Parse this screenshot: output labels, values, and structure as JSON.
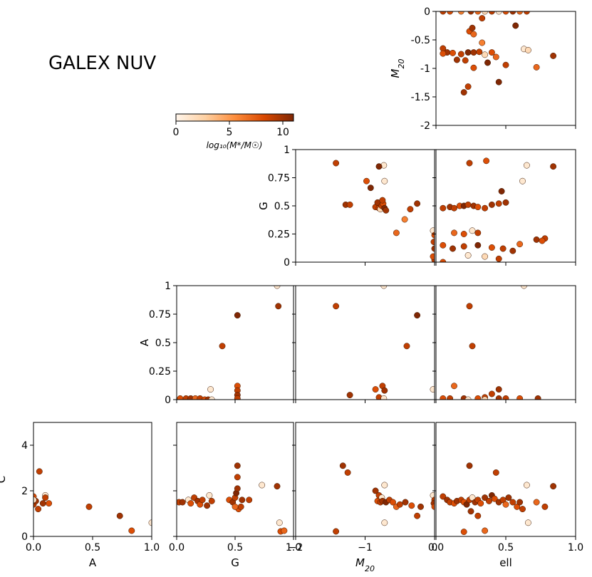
{
  "figure_title": "GALEX NUV",
  "colorbar": {
    "label": "log₁₀(M*/M☉)",
    "ticks": [
      "0",
      "5",
      "10"
    ],
    "range": [
      0,
      11
    ],
    "colors": [
      "#fff5eb",
      "#fdd0a2",
      "#fd8d3c",
      "#d94801",
      "#7f2704"
    ]
  },
  "chart_data": [
    {
      "type": "scatter",
      "id": "ell_vs_M20",
      "xlabel": "",
      "ylabel": "M20",
      "xlim": [
        0,
        1
      ],
      "ylim": [
        -2,
        0
      ],
      "x_ticks": [],
      "y_ticks": [
        "0",
        "-0.5",
        "-1",
        "-1.5",
        "-2"
      ],
      "points": [
        [
          0.05,
          0,
          9
        ],
        [
          0.1,
          0,
          8
        ],
        [
          0.18,
          0,
          6
        ],
        [
          0.25,
          0,
          10
        ],
        [
          0.3,
          0,
          7
        ],
        [
          0.35,
          0,
          2
        ],
        [
          0.4,
          0,
          9
        ],
        [
          0.45,
          0,
          1
        ],
        [
          0.5,
          0,
          8
        ],
        [
          0.55,
          0,
          10
        ],
        [
          0.6,
          0,
          7
        ],
        [
          0.65,
          0,
          9
        ],
        [
          0.24,
          -0.35,
          8
        ],
        [
          0.27,
          -0.4,
          7
        ],
        [
          0.33,
          -0.55,
          6
        ],
        [
          0.26,
          -0.29,
          10
        ],
        [
          0.33,
          -0.12,
          9
        ],
        [
          0.57,
          -0.25,
          11
        ],
        [
          0.05,
          -0.65,
          9
        ],
        [
          0.08,
          -0.72,
          10
        ],
        [
          0.12,
          -0.73,
          8
        ],
        [
          0.18,
          -0.75,
          9
        ],
        [
          0.23,
          -0.72,
          11
        ],
        [
          0.27,
          -0.72,
          10
        ],
        [
          0.31,
          -0.71,
          9
        ],
        [
          0.35,
          -0.76,
          2
        ],
        [
          0.4,
          -0.72,
          8
        ],
        [
          0.43,
          -0.8,
          7
        ],
        [
          0.15,
          -0.85,
          10
        ],
        [
          0.21,
          -0.86,
          9
        ],
        [
          0.27,
          -0.99,
          8
        ],
        [
          0.37,
          -0.9,
          11
        ],
        [
          0.5,
          -0.94,
          9
        ],
        [
          0.63,
          -0.66,
          1
        ],
        [
          0.66,
          -0.68,
          2
        ],
        [
          0.72,
          -0.98,
          7
        ],
        [
          0.84,
          -0.78,
          10
        ],
        [
          0.23,
          -1.32,
          9
        ],
        [
          0.2,
          -1.42,
          10
        ],
        [
          0.45,
          -1.24,
          11
        ],
        [
          0.05,
          -0.74,
          8
        ]
      ]
    },
    {
      "type": "scatter",
      "id": "M20_vs_G",
      "xlabel": "",
      "ylabel": "G",
      "xlim": [
        -2,
        0
      ],
      "ylim": [
        0,
        1
      ],
      "x_ticks": [],
      "y_ticks": [
        "1",
        "0.75",
        "0.5",
        "0.25",
        "0"
      ],
      "points": [
        [
          -1.42,
          0.88,
          9
        ],
        [
          -1.28,
          0.51,
          10
        ],
        [
          -1.22,
          0.51,
          9
        ],
        [
          -0.98,
          0.72,
          8
        ],
        [
          -0.92,
          0.66,
          11
        ],
        [
          -0.85,
          0.49,
          9
        ],
        [
          -0.82,
          0.53,
          10
        ],
        [
          -0.8,
          0.48,
          9
        ],
        [
          -0.78,
          0.47,
          2
        ],
        [
          -0.76,
          0.5,
          9
        ],
        [
          -0.74,
          0.52,
          8
        ],
        [
          -0.72,
          0.48,
          11
        ],
        [
          -0.7,
          0.46,
          10
        ],
        [
          -0.75,
          0.55,
          9
        ],
        [
          -0.73,
          0.86,
          1
        ],
        [
          -0.72,
          0.72,
          1
        ],
        [
          -0.8,
          0.85,
          11
        ],
        [
          -0.55,
          0.26,
          7
        ],
        [
          -0.43,
          0.38,
          6
        ],
        [
          -0.25,
          0.52,
          10
        ],
        [
          -0.35,
          0.47,
          9
        ],
        [
          -0.02,
          0.28,
          1
        ],
        [
          0,
          0.24,
          8
        ],
        [
          -0.01,
          0.18,
          9
        ],
        [
          0,
          0.12,
          10
        ],
        [
          0,
          0.02,
          9
        ],
        [
          -0.02,
          0.05,
          8
        ]
      ]
    },
    {
      "type": "scatter",
      "id": "ell_vs_G",
      "xlabel": "",
      "ylabel": "",
      "xlim": [
        0,
        1
      ],
      "ylim": [
        0,
        1
      ],
      "x_ticks": [],
      "y_ticks": [],
      "points": [
        [
          0.05,
          0.48,
          9
        ],
        [
          0.1,
          0.49,
          10
        ],
        [
          0.13,
          0.48,
          9
        ],
        [
          0.17,
          0.5,
          8
        ],
        [
          0.2,
          0.5,
          11
        ],
        [
          0.23,
          0.51,
          9
        ],
        [
          0.27,
          0.5,
          10
        ],
        [
          0.3,
          0.49,
          8
        ],
        [
          0.35,
          0.48,
          9
        ],
        [
          0.4,
          0.51,
          10
        ],
        [
          0.45,
          0.52,
          9
        ],
        [
          0.5,
          0.53,
          10
        ],
        [
          0.47,
          0.63,
          11
        ],
        [
          0.24,
          0.88,
          9
        ],
        [
          0.36,
          0.9,
          8
        ],
        [
          0.62,
          0.72,
          1
        ],
        [
          0.65,
          0.86,
          1
        ],
        [
          0.84,
          0.85,
          10
        ],
        [
          0.78,
          0.21,
          9
        ],
        [
          0.13,
          0.26,
          7
        ],
        [
          0.26,
          0.28,
          1
        ],
        [
          0.2,
          0.25,
          8
        ],
        [
          0.3,
          0.26,
          9
        ],
        [
          0.72,
          0.2,
          10
        ],
        [
          0.76,
          0.19,
          8
        ],
        [
          0.05,
          0.15,
          8
        ],
        [
          0.12,
          0.12,
          10
        ],
        [
          0.2,
          0.14,
          9
        ],
        [
          0.3,
          0.15,
          11
        ],
        [
          0.4,
          0.13,
          8
        ],
        [
          0.48,
          0.12,
          9
        ],
        [
          0.55,
          0.1,
          10
        ],
        [
          0.6,
          0.16,
          7
        ],
        [
          0.23,
          0.06,
          1
        ],
        [
          0.35,
          0.05,
          2
        ],
        [
          0.45,
          0.03,
          9
        ],
        [
          0.05,
          0.0,
          8
        ]
      ]
    },
    {
      "type": "scatter",
      "id": "G_vs_A",
      "xlabel": "",
      "ylabel": "A",
      "xlim": [
        0,
        1
      ],
      "ylim": [
        0,
        1
      ],
      "x_ticks": [],
      "y_ticks": [
        "1",
        "0.75",
        "0.5",
        "0.25",
        "0"
      ],
      "points": [
        [
          0.39,
          0.47,
          9
        ],
        [
          0.52,
          0.74,
          11
        ],
        [
          0.87,
          0.82,
          10
        ],
        [
          0.86,
          1.0,
          1
        ],
        [
          0.52,
          0.12,
          8
        ],
        [
          0.52,
          0.08,
          9
        ],
        [
          0.52,
          0.04,
          10
        ],
        [
          0.52,
          0.01,
          9
        ],
        [
          0.29,
          0.09,
          1
        ],
        [
          0.03,
          0.01,
          8
        ],
        [
          0.08,
          0.01,
          9
        ],
        [
          0.12,
          0.01,
          10
        ],
        [
          0.16,
          0.01,
          7
        ],
        [
          0.2,
          0.01,
          9
        ],
        [
          0.24,
          0.0,
          8
        ],
        [
          0.27,
          0.0,
          10
        ],
        [
          0.3,
          0.0,
          1
        ]
      ]
    },
    {
      "type": "scatter",
      "id": "M20_vs_A",
      "xlabel": "",
      "ylabel": "",
      "xlim": [
        -2,
        0
      ],
      "ylim": [
        0,
        1
      ],
      "x_ticks": [],
      "y_ticks": [],
      "points": [
        [
          -1.42,
          0.82,
          9
        ],
        [
          -0.25,
          0.74,
          11
        ],
        [
          -0.4,
          0.47,
          9
        ],
        [
          -0.73,
          1.0,
          1
        ],
        [
          -1.22,
          0.04,
          10
        ],
        [
          -0.85,
          0.09,
          8
        ],
        [
          -0.75,
          0.12,
          9
        ],
        [
          -0.72,
          0.08,
          10
        ],
        [
          -0.8,
          0.02,
          9
        ],
        [
          -0.73,
          0.01,
          1
        ],
        [
          -0.02,
          0.09,
          1
        ]
      ]
    },
    {
      "type": "scatter",
      "id": "ell_vs_A",
      "xlabel": "",
      "ylabel": "",
      "xlim": [
        0,
        1
      ],
      "ylim": [
        0,
        1
      ],
      "x_ticks": [],
      "y_ticks": [],
      "points": [
        [
          0.24,
          0.82,
          9
        ],
        [
          0.26,
          0.47,
          9
        ],
        [
          0.63,
          1.0,
          1
        ],
        [
          0.13,
          0.12,
          7
        ],
        [
          0.45,
          0.09,
          10
        ],
        [
          0.4,
          0.05,
          9
        ],
        [
          0.05,
          0.01,
          8
        ],
        [
          0.1,
          0.01,
          9
        ],
        [
          0.2,
          0.01,
          10
        ],
        [
          0.3,
          0.01,
          8
        ],
        [
          0.35,
          0.02,
          9
        ],
        [
          0.45,
          0.01,
          10
        ],
        [
          0.5,
          0.01,
          9
        ],
        [
          0.6,
          0.01,
          8
        ],
        [
          0.73,
          0.01,
          10
        ],
        [
          0.23,
          0.0,
          1
        ],
        [
          0.35,
          0.0,
          2
        ]
      ]
    },
    {
      "type": "scatter",
      "id": "A_vs_C",
      "xlabel": "A",
      "ylabel": "C",
      "xlim": [
        0,
        1
      ],
      "ylim": [
        0,
        5
      ],
      "x_ticks": [
        "0.0",
        "0.5",
        "1.0"
      ],
      "y_ticks": [
        "4",
        "2",
        "0"
      ],
      "points": [
        [
          0.05,
          2.85,
          9
        ],
        [
          0.0,
          1.75,
          8
        ],
        [
          0.1,
          1.8,
          1
        ],
        [
          0.1,
          1.7,
          9
        ],
        [
          0.08,
          1.45,
          10
        ],
        [
          0.13,
          1.45,
          8
        ],
        [
          0.0,
          1.4,
          9
        ],
        [
          0.02,
          1.55,
          10
        ],
        [
          0.04,
          1.2,
          9
        ],
        [
          0.0,
          1.6,
          1
        ],
        [
          0.47,
          1.3,
          9
        ],
        [
          0.73,
          0.9,
          10
        ],
        [
          0.83,
          0.25,
          8
        ],
        [
          1.0,
          0.6,
          1
        ]
      ]
    },
    {
      "type": "scatter",
      "id": "G_vs_C",
      "xlabel": "G",
      "ylabel": "",
      "xlim": [
        0,
        1
      ],
      "ylim": [
        0,
        5
      ],
      "x_ticks": [
        "0.0",
        "0.5",
        "1.0"
      ],
      "y_ticks": [],
      "points": [
        [
          0.02,
          1.5,
          9
        ],
        [
          0.05,
          1.5,
          10
        ],
        [
          0.1,
          1.6,
          1
        ],
        [
          0.12,
          1.45,
          8
        ],
        [
          0.15,
          1.7,
          9
        ],
        [
          0.18,
          1.55,
          10
        ],
        [
          0.2,
          1.4,
          8
        ],
        [
          0.22,
          1.6,
          9
        ],
        [
          0.26,
          1.35,
          10
        ],
        [
          0.28,
          1.8,
          1
        ],
        [
          0.3,
          1.55,
          9
        ],
        [
          0.45,
          1.6,
          8
        ],
        [
          0.48,
          1.5,
          10
        ],
        [
          0.5,
          1.7,
          9
        ],
        [
          0.51,
          1.9,
          11
        ],
        [
          0.52,
          2.1,
          10
        ],
        [
          0.52,
          2.6,
          9
        ],
        [
          0.52,
          3.1,
          10
        ],
        [
          0.53,
          1.2,
          8
        ],
        [
          0.55,
          1.3,
          9
        ],
        [
          0.56,
          1.6,
          10
        ],
        [
          0.5,
          1.3,
          7
        ],
        [
          0.62,
          1.6,
          9
        ],
        [
          0.73,
          2.25,
          1
        ],
        [
          0.86,
          2.2,
          10
        ],
        [
          0.88,
          0.6,
          1
        ],
        [
          0.89,
          0.22,
          8
        ],
        [
          0.92,
          0.25,
          7
        ]
      ]
    },
    {
      "type": "scatter",
      "id": "M20_vs_C",
      "xlabel": "M20",
      "ylabel": "",
      "xlim": [
        -2,
        0
      ],
      "ylim": [
        0,
        5
      ],
      "x_ticks": [
        "−2",
        "−1",
        "0"
      ],
      "y_ticks": [],
      "points": [
        [
          -1.32,
          3.1,
          10
        ],
        [
          -1.25,
          2.8,
          9
        ],
        [
          -1.42,
          0.22,
          9
        ],
        [
          -0.85,
          2.0,
          10
        ],
        [
          -0.8,
          1.8,
          9
        ],
        [
          -0.76,
          1.7,
          1
        ],
        [
          -0.72,
          2.25,
          1
        ],
        [
          -0.82,
          1.55,
          8
        ],
        [
          -0.78,
          1.5,
          9
        ],
        [
          -0.75,
          1.55,
          10
        ],
        [
          -0.7,
          1.5,
          11
        ],
        [
          -0.65,
          1.6,
          9
        ],
        [
          -0.6,
          1.5,
          8
        ],
        [
          -0.55,
          1.3,
          7
        ],
        [
          -0.5,
          1.4,
          9
        ],
        [
          -0.42,
          1.5,
          10
        ],
        [
          -0.33,
          1.35,
          8
        ],
        [
          -0.25,
          0.9,
          9
        ],
        [
          -0.2,
          1.3,
          10
        ],
        [
          -0.72,
          0.6,
          1
        ],
        [
          -0.02,
          1.8,
          1
        ],
        [
          0,
          1.6,
          9
        ],
        [
          -0.01,
          1.45,
          10
        ],
        [
          0,
          1.3,
          8
        ]
      ]
    },
    {
      "type": "scatter",
      "id": "ell_vs_C",
      "xlabel": "ell",
      "ylabel": "",
      "xlim": [
        0,
        1
      ],
      "ylim": [
        0,
        5
      ],
      "x_ticks": [
        "0.0",
        "0.5",
        "1.0"
      ],
      "y_ticks": [],
      "points": [
        [
          0.05,
          1.75,
          9
        ],
        [
          0.08,
          1.6,
          10
        ],
        [
          0.1,
          1.5,
          9
        ],
        [
          0.13,
          1.45,
          8
        ],
        [
          0.15,
          1.55,
          10
        ],
        [
          0.18,
          1.6,
          9
        ],
        [
          0.2,
          1.5,
          8
        ],
        [
          0.22,
          1.4,
          11
        ],
        [
          0.24,
          1.6,
          9
        ],
        [
          0.26,
          1.7,
          1
        ],
        [
          0.28,
          1.5,
          10
        ],
        [
          0.3,
          1.6,
          9
        ],
        [
          0.32,
          1.45,
          8
        ],
        [
          0.35,
          1.7,
          10
        ],
        [
          0.38,
          1.55,
          9
        ],
        [
          0.4,
          1.8,
          11
        ],
        [
          0.42,
          1.65,
          8
        ],
        [
          0.45,
          1.5,
          10
        ],
        [
          0.48,
          1.6,
          9
        ],
        [
          0.5,
          1.4,
          7
        ],
        [
          0.52,
          1.7,
          10
        ],
        [
          0.55,
          1.5,
          9
        ],
        [
          0.58,
          1.3,
          8
        ],
        [
          0.6,
          1.5,
          10
        ],
        [
          0.62,
          1.2,
          9
        ],
        [
          0.65,
          2.25,
          1
        ],
        [
          0.66,
          0.6,
          1
        ],
        [
          0.72,
          1.5,
          7
        ],
        [
          0.78,
          1.3,
          9
        ],
        [
          0.84,
          2.2,
          10
        ],
        [
          0.24,
          3.1,
          10
        ],
        [
          0.43,
          2.8,
          9
        ],
        [
          0.2,
          0.2,
          8
        ],
        [
          0.35,
          0.25,
          7
        ],
        [
          0.3,
          0.9,
          9
        ],
        [
          0.25,
          1.1,
          10
        ]
      ]
    }
  ]
}
